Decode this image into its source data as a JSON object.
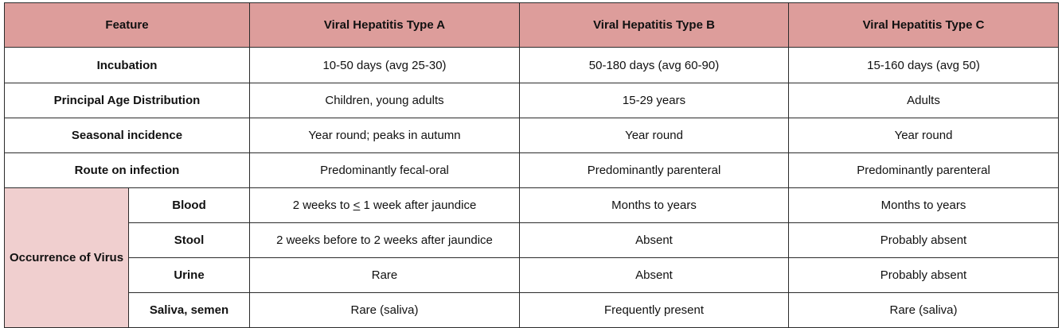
{
  "header": {
    "feature": "Feature",
    "type_a": "Viral Hepatitis Type A",
    "type_b": "Viral Hepatitis Type B",
    "type_c": "Viral Hepatitis Type C"
  },
  "rows": [
    {
      "label": "Incubation",
      "a": "10-50 days (avg 25-30)",
      "b": "50-180 days (avg 60-90)",
      "c": "15-160 days (avg 50)"
    },
    {
      "label": "Principal Age Distribution",
      "a": "Children, young adults",
      "b": "15-29 years",
      "c": "Adults"
    },
    {
      "label": "Seasonal incidence",
      "a": "Year round; peaks in autumn",
      "b": "Year round",
      "c": "Year round"
    },
    {
      "label": "Route on infection",
      "a": "Predominantly fecal-oral",
      "b": "Predominantly parenteral",
      "c": "Predominantly parenteral"
    }
  ],
  "occurrence": {
    "group_label": "Occurrence of Virus",
    "blood": {
      "label": "Blood",
      "a_before": "2 weeks to ",
      "a_symbol": "<",
      "a_after": " 1 week after jaundice",
      "b": "Months to years",
      "c": "Months to years"
    },
    "stool": {
      "label": "Stool",
      "a": "2 weeks before to 2 weeks after jaundice",
      "b": "Absent",
      "c": "Probably absent"
    },
    "urine": {
      "label": "Urine",
      "a": "Rare",
      "b": "Absent",
      "c": "Probably absent"
    },
    "saliva": {
      "label": "Saliva, semen",
      "a": "Rare (saliva)",
      "b": "Frequently present",
      "c": "Rare (saliva)"
    }
  }
}
